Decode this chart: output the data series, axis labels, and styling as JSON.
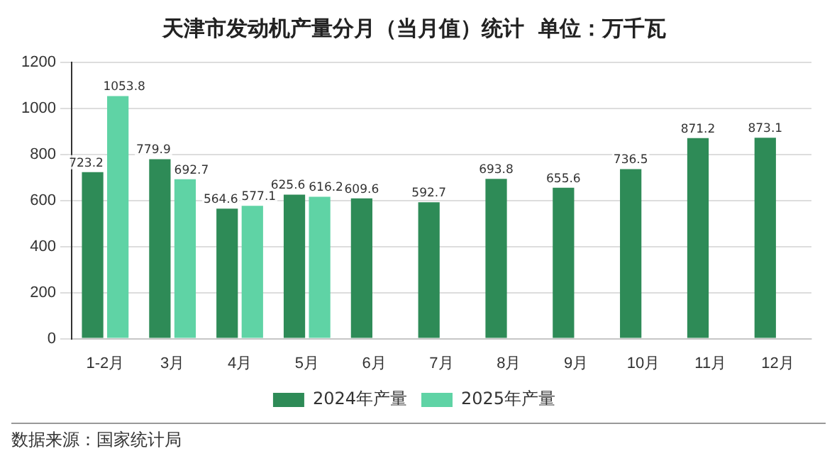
{
  "chart_data": {
    "type": "bar",
    "title": "天津市发动机产量分月（当月值）统计  单位：万千瓦",
    "categories": [
      "1-2月",
      "3月",
      "4月",
      "5月",
      "6月",
      "7月",
      "8月",
      "9月",
      "10月",
      "11月",
      "12月"
    ],
    "series": [
      {
        "name": "2024年产量",
        "color": "#2e8b57",
        "values": [
          723.2,
          779.9,
          564.6,
          625.6,
          609.6,
          592.7,
          693.8,
          655.6,
          736.5,
          871.2,
          873.1
        ]
      },
      {
        "name": "2025年产量",
        "color": "#5fd3a5",
        "values": [
          1053.8,
          692.7,
          577.1,
          616.2,
          null,
          null,
          null,
          null,
          null,
          null,
          null
        ]
      }
    ],
    "ylim": [
      0,
      1200
    ],
    "yticks": [
      0,
      200,
      400,
      600,
      800,
      1000,
      1200
    ],
    "grid": "y",
    "legend": "bottom",
    "data_labels": true,
    "annotations": [
      "数据来源：国家统计局"
    ]
  }
}
